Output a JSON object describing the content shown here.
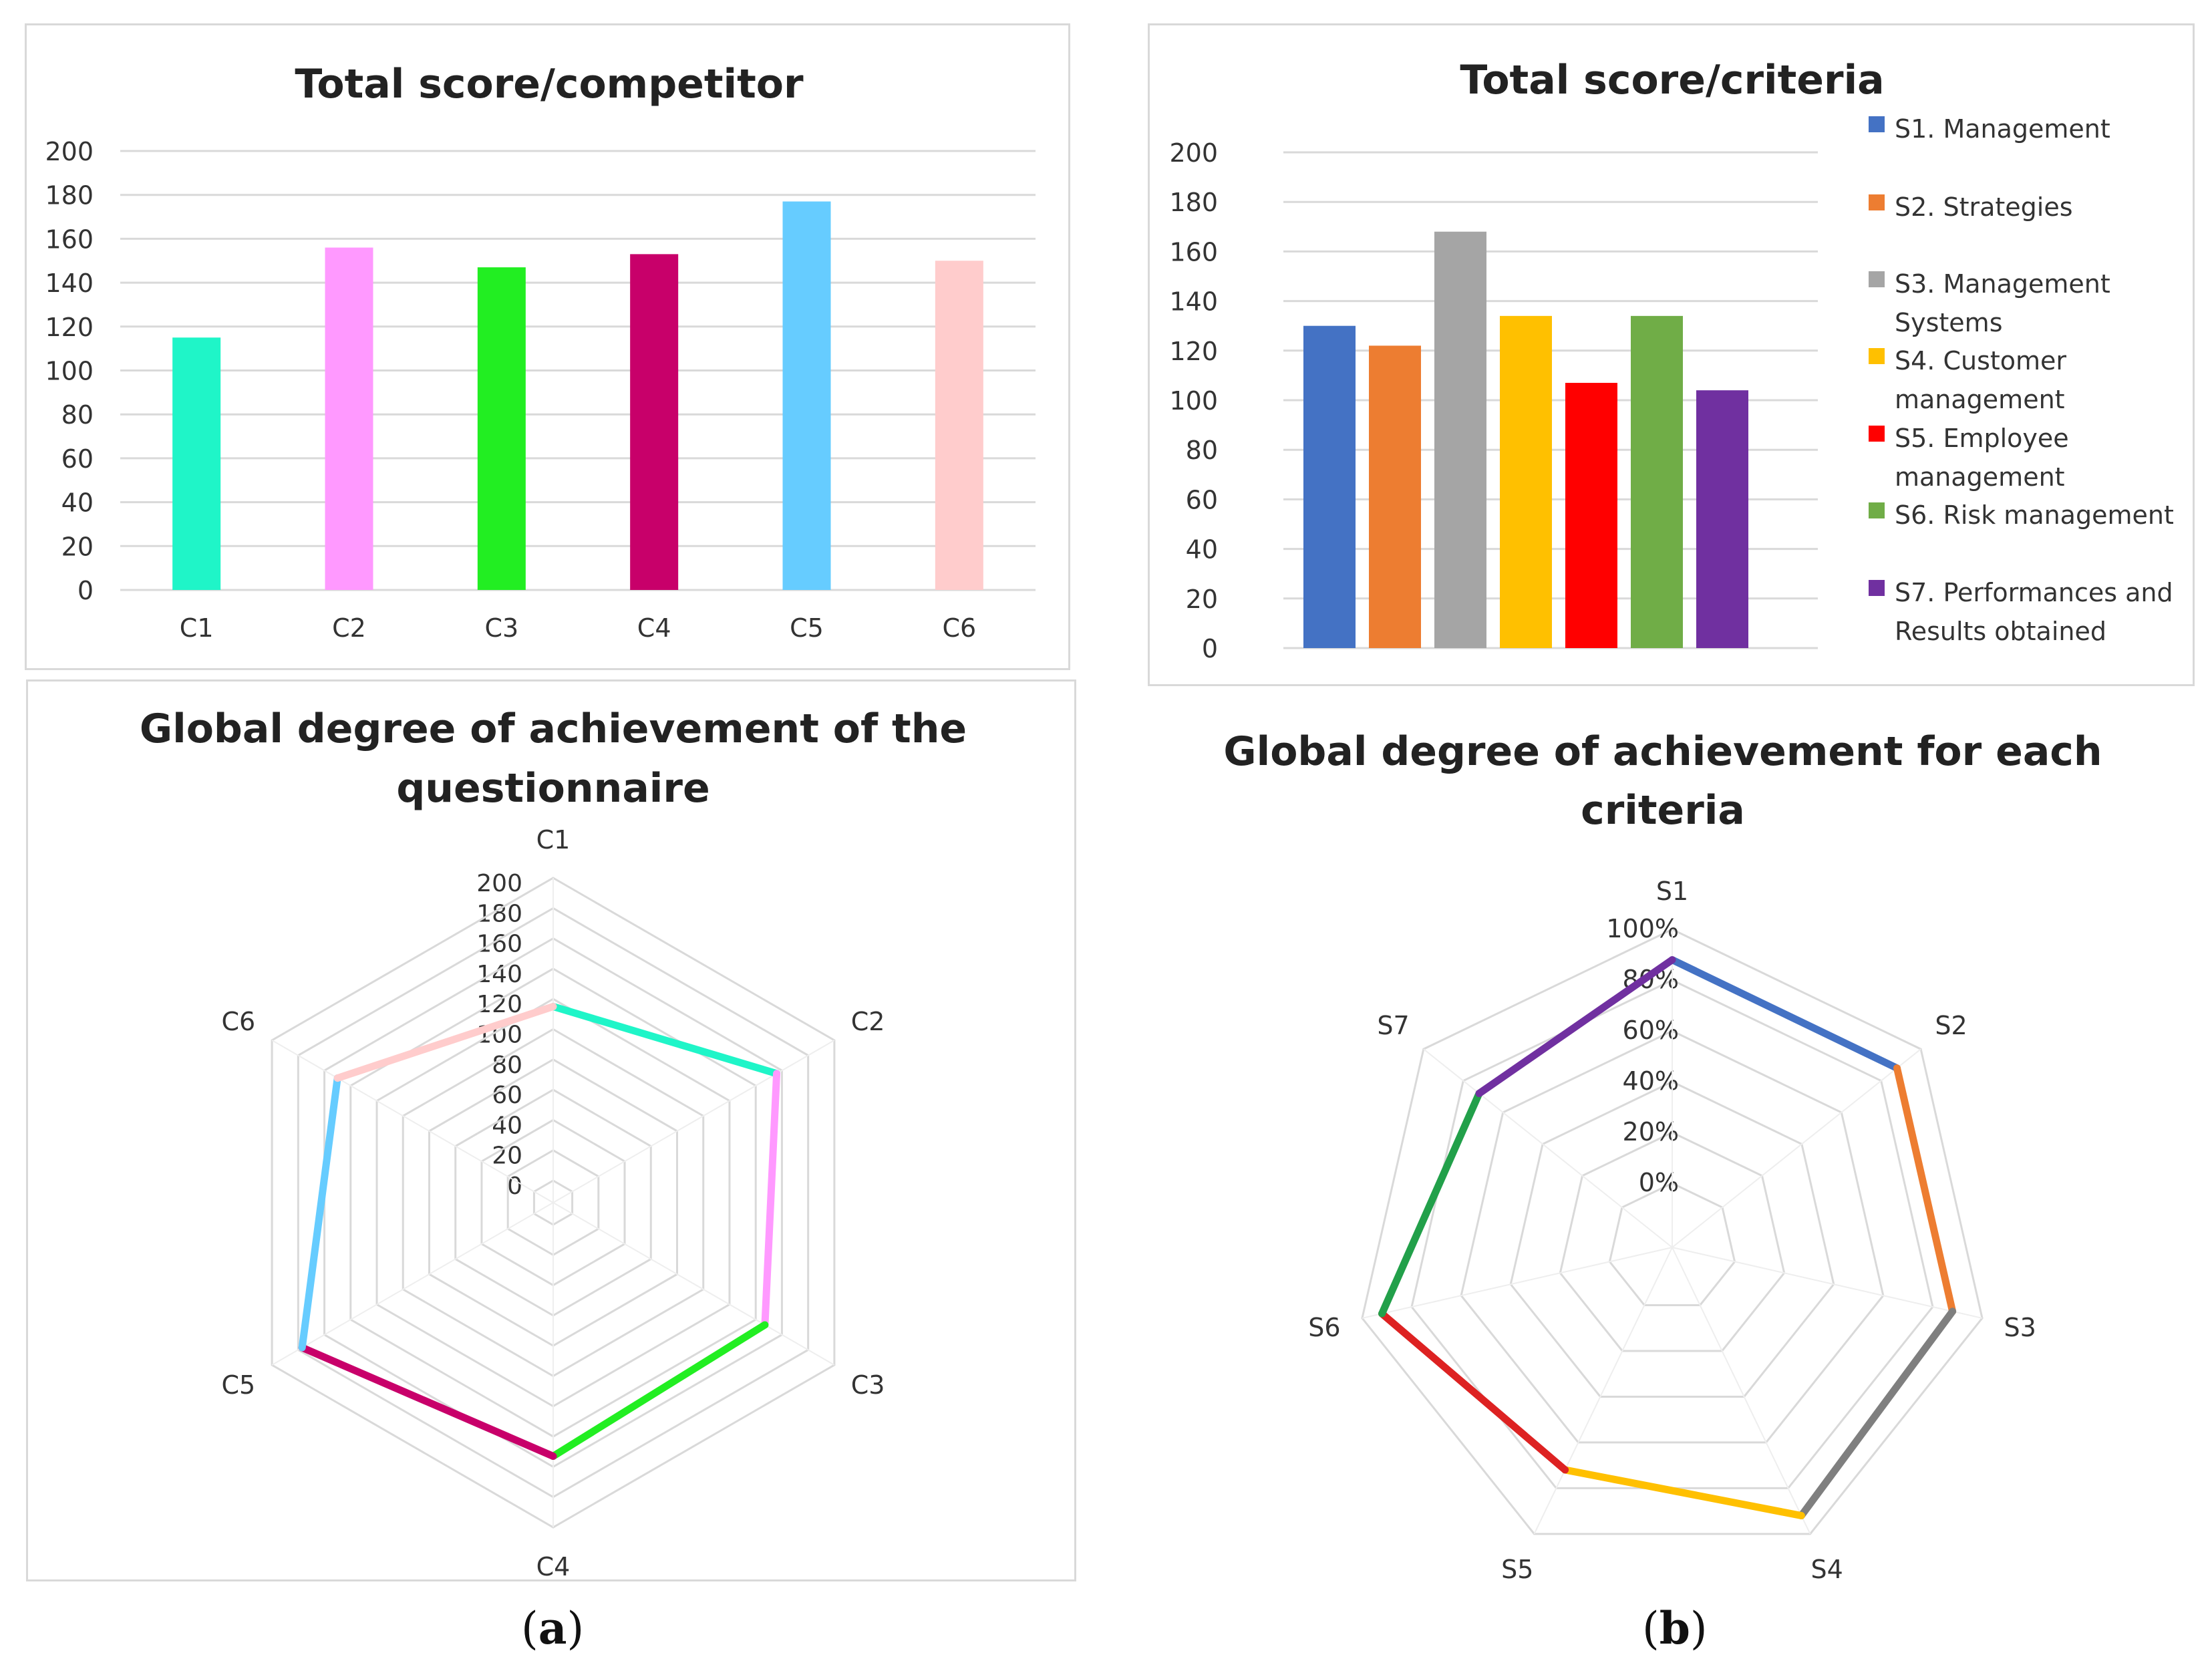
{
  "chart_data": [
    {
      "type": "bar",
      "title": "Total score/competitor",
      "categories": [
        "C1",
        "C2",
        "C3",
        "C4",
        "C5",
        "C6"
      ],
      "values": [
        115,
        156,
        147,
        153,
        177,
        150
      ],
      "colors": [
        "#1ff5c8",
        "#ff99ff",
        "#22ee22",
        "#c8006a",
        "#66ccff",
        "#ffcccc"
      ],
      "yticks": [
        "0",
        "20",
        "40",
        "60",
        "80",
        "100",
        "120",
        "140",
        "160",
        "180",
        "200"
      ],
      "ylim": [
        0,
        200
      ],
      "grid": true
    },
    {
      "type": "bar",
      "title": "Total score/criteria",
      "series": [
        {
          "name": "S1. Management",
          "value": 130,
          "color": "#4472c4"
        },
        {
          "name": "S2. Strategies",
          "value": 122,
          "color": "#ed7d31"
        },
        {
          "name": "S3. Management Systems",
          "value": 168,
          "color": "#a5a5a5"
        },
        {
          "name": "S4. Customer management",
          "value": 134,
          "color": "#ffc000"
        },
        {
          "name": "S5. Employee management",
          "value": 107,
          "color": "#ff0000"
        },
        {
          "name": "S6. Risk management",
          "value": 134,
          "color": "#70ad47"
        },
        {
          "name": "S7. Performances and Results obtained",
          "value": 104,
          "color": "#7030a0"
        }
      ],
      "legend": [
        [
          "S1. Management"
        ],
        [
          "S2. Strategies"
        ],
        [
          "S3. Management",
          "Systems"
        ],
        [
          "S4. Customer",
          "management"
        ],
        [
          "S5. Employee",
          "management"
        ],
        [
          "S6. Risk management"
        ],
        [
          "S7. Performances and",
          "Results obtained"
        ]
      ],
      "yticks": [
        "0",
        "20",
        "40",
        "60",
        "80",
        "100",
        "120",
        "140",
        "160",
        "180",
        "200"
      ],
      "ylim": [
        0,
        200
      ],
      "legend_position": "right",
      "grid": true
    },
    {
      "type": "radar",
      "title_lines": [
        "Global degree of achievement of the",
        "questionnaire"
      ],
      "categories": [
        "C1",
        "C2",
        "C3",
        "C4",
        "C5",
        "C6"
      ],
      "values": [
        115,
        156,
        147,
        153,
        177,
        150
      ],
      "colors": [
        "#1ff5c8",
        "#ff99ff",
        "#22ee22",
        "#c8006a",
        "#66ccff",
        "#ffcccc"
      ],
      "rticks": [
        "0",
        "20",
        "40",
        "60",
        "80",
        "100",
        "120",
        "140",
        "160",
        "180",
        "200"
      ],
      "rlim": [
        0,
        200
      ]
    },
    {
      "type": "radar",
      "title_lines": [
        "Global degree of achievement for each",
        "criteria"
      ],
      "categories": [
        "S1",
        "S2",
        "S3",
        "S4",
        "S5",
        "S6",
        "S7"
      ],
      "values": [
        0.88,
        0.88,
        0.88,
        0.92,
        0.72,
        0.92,
        0.72
      ],
      "colors": [
        "#4472c4",
        "#ed7d31",
        "#7f7f7f",
        "#ffc000",
        "#dd2222",
        "#22a04a",
        "#7030a0"
      ],
      "rticks": [
        "0%",
        "20%",
        "40%",
        "60%",
        "80%",
        "100%"
      ],
      "rlim": [
        0,
        1
      ]
    }
  ],
  "captions": {
    "a": "a",
    "b": "b"
  }
}
